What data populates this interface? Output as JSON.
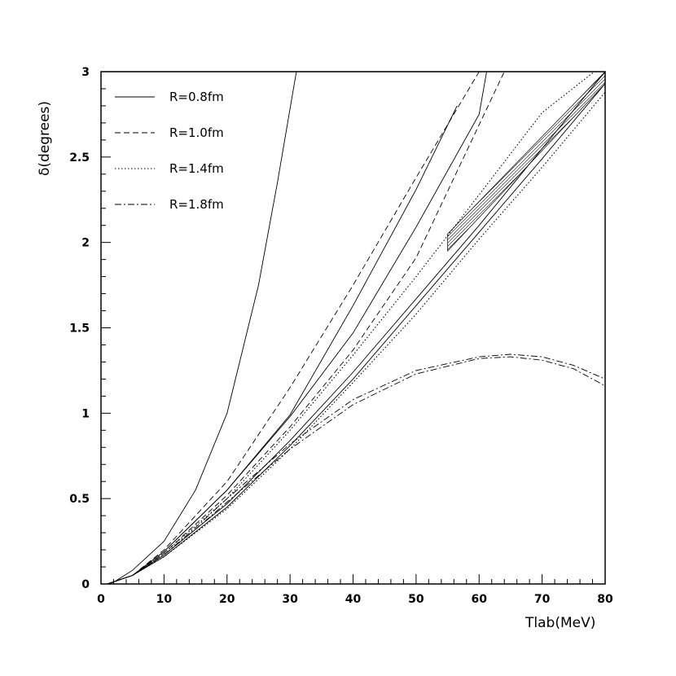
{
  "chart_data": {
    "type": "line",
    "title": "",
    "xlabel": "Tlab(MeV)",
    "ylabel": "δ(degrees)",
    "xlim": [
      0,
      80
    ],
    "ylim": [
      0,
      3
    ],
    "xticks": [
      "0",
      "10",
      "20",
      "30",
      "40",
      "50",
      "60",
      "70",
      "80"
    ],
    "yticks": [
      "0",
      "0.5",
      "1",
      "1.5",
      "2",
      "2.5",
      "3"
    ],
    "legend_position": "top-left",
    "grid": false,
    "legend": [
      {
        "label": "R=0.8fm",
        "style": "solid"
      },
      {
        "label": "R=1.0fm",
        "style": "dashed"
      },
      {
        "label": "R=1.4fm",
        "style": "dotted"
      },
      {
        "label": "R=1.8fm",
        "style": "dashdot"
      }
    ],
    "series": [
      {
        "style": "solid",
        "x": [
          1,
          2,
          5,
          10,
          15,
          20,
          25,
          28,
          31
        ],
        "y": [
          0.0,
          0.01,
          0.08,
          0.25,
          0.55,
          1.0,
          1.75,
          2.35,
          3.0
        ]
      },
      {
        "style": "solid",
        "x": [
          1,
          5,
          10,
          20,
          30,
          40,
          50,
          56.5
        ],
        "y": [
          0.0,
          0.05,
          0.19,
          0.55,
          0.99,
          1.63,
          2.31,
          2.8
        ]
      },
      {
        "style": "solid",
        "x": [
          1,
          5,
          10,
          20,
          30,
          40,
          50,
          60,
          61.2
        ],
        "y": [
          0.0,
          0.05,
          0.19,
          0.55,
          0.98,
          1.47,
          2.09,
          2.75,
          3.0
        ]
      },
      {
        "style": "dashed",
        "x": [
          1,
          5,
          10,
          20,
          30,
          40,
          50,
          60
        ],
        "y": [
          0.0,
          0.05,
          0.2,
          0.6,
          1.15,
          1.75,
          2.38,
          3.0
        ]
      },
      {
        "style": "dashed",
        "x": [
          1,
          5,
          10,
          20,
          30,
          40,
          50,
          64
        ],
        "y": [
          0.0,
          0.05,
          0.18,
          0.52,
          0.92,
          1.37,
          1.91,
          3.0
        ]
      },
      {
        "style": "solid",
        "x": [
          1,
          5,
          10,
          20,
          30,
          40,
          50,
          60,
          70,
          80
        ],
        "y": [
          0.0,
          0.05,
          0.17,
          0.47,
          0.84,
          1.24,
          1.67,
          2.1,
          2.55,
          3.0
        ]
      },
      {
        "style": "solid",
        "x": [
          1,
          5,
          10,
          20,
          30,
          40,
          50,
          60,
          70,
          80
        ],
        "y": [
          0.0,
          0.05,
          0.16,
          0.45,
          0.81,
          1.2,
          1.63,
          2.06,
          2.49,
          2.93
        ]
      },
      {
        "style": "dotted",
        "x": [
          1,
          5,
          10,
          20,
          30,
          40,
          50,
          60,
          70,
          80
        ],
        "y": [
          0.0,
          0.05,
          0.18,
          0.5,
          0.9,
          1.34,
          1.8,
          2.28,
          2.76,
          3.05
        ]
      },
      {
        "style": "dotted",
        "x": [
          1,
          5,
          10,
          20,
          30,
          40,
          50,
          60,
          70,
          80
        ],
        "y": [
          0.0,
          0.05,
          0.16,
          0.44,
          0.79,
          1.18,
          1.58,
          2.02,
          2.44,
          2.88
        ]
      },
      {
        "style": "dashdot",
        "x": [
          1,
          5,
          10,
          15,
          20,
          30,
          40,
          50,
          60,
          65,
          70,
          75,
          80
        ],
        "y": [
          0.0,
          0.05,
          0.17,
          0.32,
          0.48,
          0.79,
          1.05,
          1.23,
          1.32,
          1.33,
          1.31,
          1.26,
          1.16
        ]
      },
      {
        "style": "dashdot",
        "x": [
          1,
          5,
          10,
          15,
          20,
          30,
          40,
          50,
          60,
          65,
          70,
          75,
          80
        ],
        "y": [
          0.0,
          0.05,
          0.17,
          0.33,
          0.5,
          0.82,
          1.08,
          1.25,
          1.33,
          1.345,
          1.33,
          1.28,
          1.2
        ]
      }
    ],
    "band": {
      "label": "",
      "x": [
        55,
        80
      ],
      "y_low": [
        1.95,
        2.93
      ],
      "y_high": [
        2.05,
        3.0
      ]
    }
  }
}
